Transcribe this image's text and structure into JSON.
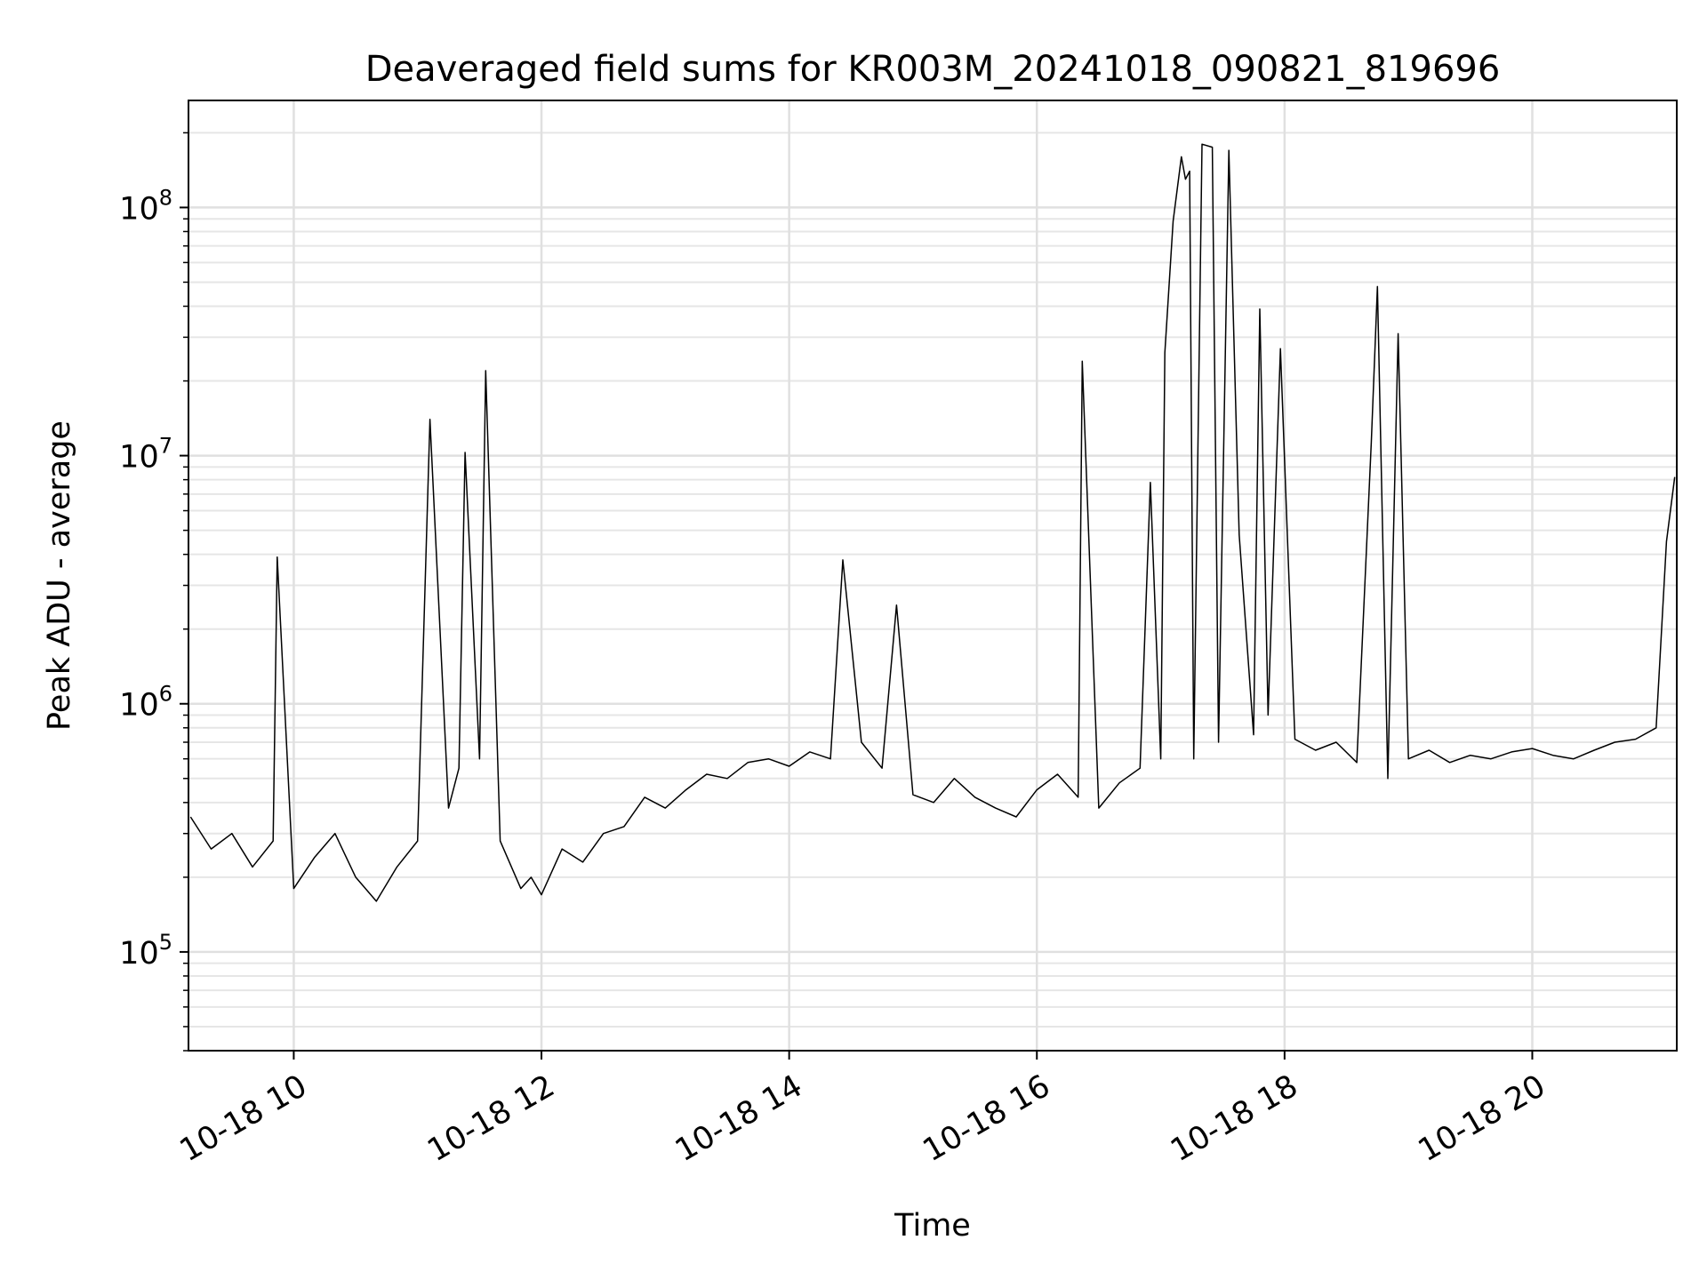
{
  "chart_data": {
    "type": "line",
    "title": "Deaveraged field sums for KR003M_20241018_090821_819696",
    "xlabel": "Time",
    "ylabel": "Peak ADU - average",
    "yscale": "log",
    "grid": true,
    "legend": "none",
    "xlim": [
      "2024-10-18 09:09",
      "2024-10-18 21:10"
    ],
    "ylim": [
      40000,
      270000000
    ],
    "x_ticks": [
      {
        "t": "2024-10-18 10:00",
        "label": "10-18 10"
      },
      {
        "t": "2024-10-18 12:00",
        "label": "10-18 12"
      },
      {
        "t": "2024-10-18 14:00",
        "label": "10-18 14"
      },
      {
        "t": "2024-10-18 16:00",
        "label": "10-18 16"
      },
      {
        "t": "2024-10-18 18:00",
        "label": "10-18 18"
      },
      {
        "t": "2024-10-18 20:00",
        "label": "10-18 20"
      }
    ],
    "y_ticks": [
      {
        "value": 100000,
        "base": "10",
        "exp": "5"
      },
      {
        "value": 1000000,
        "base": "10",
        "exp": "6"
      },
      {
        "value": 10000000,
        "base": "10",
        "exp": "7"
      },
      {
        "value": 100000000,
        "base": "10",
        "exp": "8"
      }
    ],
    "series": [
      {
        "color": "#000000",
        "x": [
          "2024-10-18 09:10",
          "2024-10-18 09:20",
          "2024-10-18 09:30",
          "2024-10-18 09:40",
          "2024-10-18 09:50",
          "2024-10-18 09:52",
          "2024-10-18 10:00",
          "2024-10-18 10:10",
          "2024-10-18 10:20",
          "2024-10-18 10:30",
          "2024-10-18 10:40",
          "2024-10-18 10:50",
          "2024-10-18 11:00",
          "2024-10-18 11:06",
          "2024-10-18 11:15",
          "2024-10-18 11:20",
          "2024-10-18 11:23",
          "2024-10-18 11:30",
          "2024-10-18 11:33",
          "2024-10-18 11:40",
          "2024-10-18 11:50",
          "2024-10-18 11:55",
          "2024-10-18 12:00",
          "2024-10-18 12:10",
          "2024-10-18 12:20",
          "2024-10-18 12:30",
          "2024-10-18 12:40",
          "2024-10-18 12:50",
          "2024-10-18 13:00",
          "2024-10-18 13:10",
          "2024-10-18 13:20",
          "2024-10-18 13:30",
          "2024-10-18 13:40",
          "2024-10-18 13:50",
          "2024-10-18 14:00",
          "2024-10-18 14:10",
          "2024-10-18 14:20",
          "2024-10-18 14:26",
          "2024-10-18 14:35",
          "2024-10-18 14:45",
          "2024-10-18 14:52",
          "2024-10-18 15:00",
          "2024-10-18 15:10",
          "2024-10-18 15:20",
          "2024-10-18 15:30",
          "2024-10-18 15:40",
          "2024-10-18 15:50",
          "2024-10-18 16:00",
          "2024-10-18 16:10",
          "2024-10-18 16:20",
          "2024-10-18 16:22",
          "2024-10-18 16:30",
          "2024-10-18 16:40",
          "2024-10-18 16:50",
          "2024-10-18 16:55",
          "2024-10-18 17:00",
          "2024-10-18 17:02",
          "2024-10-18 17:06",
          "2024-10-18 17:10",
          "2024-10-18 17:12",
          "2024-10-18 17:14",
          "2024-10-18 17:16",
          "2024-10-18 17:20",
          "2024-10-18 17:25",
          "2024-10-18 17:28",
          "2024-10-18 17:33",
          "2024-10-18 17:38",
          "2024-10-18 17:45",
          "2024-10-18 17:48",
          "2024-10-18 17:52",
          "2024-10-18 17:58",
          "2024-10-18 18:05",
          "2024-10-18 18:15",
          "2024-10-18 18:25",
          "2024-10-18 18:35",
          "2024-10-18 18:42",
          "2024-10-18 18:45",
          "2024-10-18 18:50",
          "2024-10-18 18:55",
          "2024-10-18 19:00",
          "2024-10-18 19:10",
          "2024-10-18 19:20",
          "2024-10-18 19:30",
          "2024-10-18 19:40",
          "2024-10-18 19:50",
          "2024-10-18 20:00",
          "2024-10-18 20:10",
          "2024-10-18 20:20",
          "2024-10-18 20:30",
          "2024-10-18 20:40",
          "2024-10-18 20:50",
          "2024-10-18 21:00",
          "2024-10-18 21:05",
          "2024-10-18 21:09"
        ],
        "y": [
          350000,
          260000,
          300000,
          220000,
          280000,
          3900000,
          180000,
          240000,
          300000,
          200000,
          160000,
          220000,
          280000,
          14000000,
          380000,
          550000,
          10300000,
          600000,
          22000000,
          280000,
          180000,
          200000,
          170000,
          260000,
          230000,
          300000,
          320000,
          420000,
          380000,
          450000,
          520000,
          500000,
          580000,
          600000,
          560000,
          640000,
          600000,
          3800000,
          700000,
          550000,
          2500000,
          430000,
          400000,
          500000,
          420000,
          380000,
          350000,
          450000,
          520000,
          420000,
          24000000,
          380000,
          480000,
          550000,
          7800000,
          600000,
          26000000,
          88000000,
          160000000,
          130000000,
          140000000,
          600000,
          180000000,
          175000000,
          700000,
          170000000,
          4800000,
          750000,
          39000000,
          900000,
          27000000,
          720000,
          650000,
          700000,
          580000,
          11300000,
          48000000,
          500000,
          31000000,
          600000,
          650000,
          580000,
          620000,
          600000,
          640000,
          660000,
          620000,
          600000,
          650000,
          700000,
          720000,
          800000,
          4500000,
          8200000
        ]
      }
    ]
  }
}
